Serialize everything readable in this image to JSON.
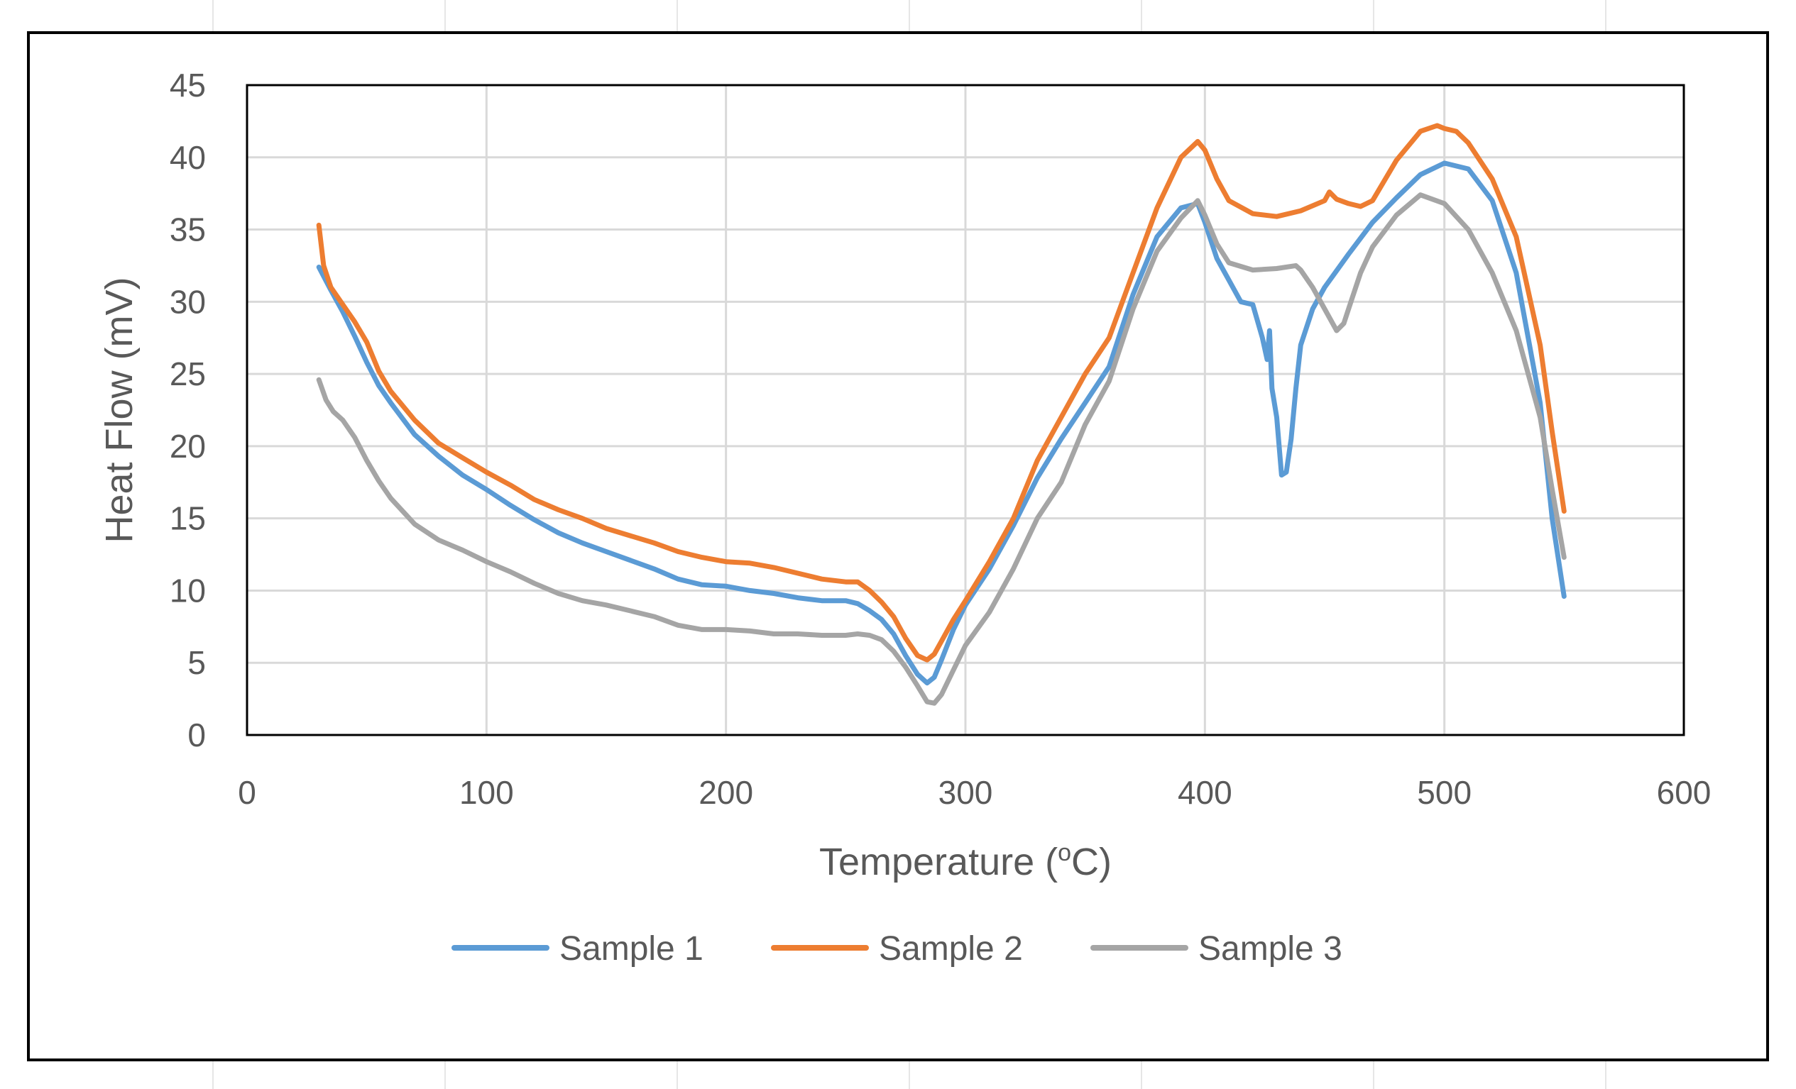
{
  "chart_data": {
    "type": "line",
    "title": "",
    "xlabel": "Temperature (",
    "xlabel_sup": "o",
    "xlabel_tail": "C)",
    "ylabel": "Heat Flow (mV)",
    "xlim": [
      0,
      600
    ],
    "ylim": [
      0,
      45
    ],
    "xticks": [
      0,
      100,
      200,
      300,
      400,
      500,
      600
    ],
    "yticks": [
      0,
      5,
      10,
      15,
      20,
      25,
      30,
      35,
      40,
      45
    ],
    "grid": true,
    "legend_position": "bottom",
    "series": [
      {
        "name": "Sample 1",
        "color": "#5B9BD5",
        "x": [
          30,
          35,
          40,
          45,
          50,
          55,
          60,
          70,
          80,
          90,
          100,
          110,
          120,
          130,
          140,
          150,
          160,
          170,
          180,
          190,
          200,
          210,
          220,
          230,
          240,
          250,
          255,
          260,
          265,
          270,
          275,
          280,
          284,
          287,
          290,
          295,
          300,
          310,
          320,
          330,
          340,
          350,
          360,
          370,
          380,
          390,
          397,
          400,
          405,
          410,
          415,
          420,
          424,
          426,
          427,
          428,
          430,
          432,
          434,
          436,
          438,
          440,
          445,
          450,
          460,
          470,
          480,
          490,
          500,
          510,
          520,
          530,
          540,
          545,
          550
        ],
        "y": [
          32.4,
          30.8,
          29.3,
          27.6,
          25.8,
          24.2,
          23.0,
          20.8,
          19.3,
          18.0,
          17.0,
          15.9,
          14.9,
          14.0,
          13.3,
          12.7,
          12.1,
          11.5,
          10.8,
          10.4,
          10.3,
          10.0,
          9.8,
          9.5,
          9.3,
          9.3,
          9.1,
          8.6,
          8.0,
          7.0,
          5.5,
          4.2,
          3.6,
          4.0,
          5.2,
          7.3,
          9.0,
          11.5,
          14.5,
          17.8,
          20.5,
          23.0,
          25.5,
          30.5,
          34.5,
          36.5,
          36.8,
          35.5,
          33.0,
          31.5,
          30.0,
          29.8,
          27.5,
          26.0,
          28.0,
          24.0,
          22.0,
          18.0,
          18.2,
          20.5,
          24.0,
          27.0,
          29.5,
          31.0,
          33.3,
          35.5,
          37.2,
          38.8,
          39.6,
          39.2,
          37.0,
          32.0,
          23.0,
          15.0,
          9.6
        ]
      },
      {
        "name": "Sample 2",
        "color": "#ED7D31",
        "x": [
          30,
          32,
          35,
          40,
          45,
          50,
          55,
          60,
          70,
          80,
          90,
          100,
          110,
          120,
          130,
          140,
          150,
          160,
          170,
          180,
          190,
          200,
          210,
          220,
          230,
          240,
          250,
          255,
          260,
          265,
          270,
          275,
          280,
          284,
          287,
          290,
          295,
          300,
          310,
          320,
          330,
          340,
          350,
          360,
          370,
          380,
          390,
          397,
          400,
          405,
          410,
          420,
          430,
          440,
          450,
          452,
          455,
          460,
          465,
          470,
          480,
          490,
          497,
          500,
          505,
          510,
          520,
          530,
          540,
          545,
          550
        ],
        "y": [
          35.3,
          32.5,
          31.0,
          29.8,
          28.6,
          27.2,
          25.2,
          23.8,
          21.8,
          20.2,
          19.2,
          18.2,
          17.3,
          16.3,
          15.6,
          15.0,
          14.3,
          13.8,
          13.3,
          12.7,
          12.3,
          12.0,
          11.9,
          11.6,
          11.2,
          10.8,
          10.6,
          10.6,
          10.0,
          9.2,
          8.2,
          6.7,
          5.5,
          5.2,
          5.6,
          6.5,
          8.0,
          9.3,
          12.0,
          15.0,
          19.0,
          22.0,
          25.0,
          27.5,
          32.0,
          36.5,
          40.0,
          41.1,
          40.5,
          38.5,
          37.0,
          36.1,
          35.9,
          36.3,
          37.0,
          37.6,
          37.1,
          36.8,
          36.6,
          37.0,
          39.8,
          41.8,
          42.2,
          42.0,
          41.8,
          41.0,
          38.5,
          34.5,
          27.0,
          21.0,
          15.5
        ]
      },
      {
        "name": "Sample 3",
        "color": "#A5A5A5",
        "x": [
          30,
          33,
          36,
          40,
          45,
          50,
          55,
          60,
          70,
          80,
          90,
          100,
          110,
          120,
          130,
          140,
          150,
          160,
          170,
          180,
          190,
          200,
          210,
          220,
          230,
          240,
          250,
          255,
          260,
          265,
          270,
          275,
          280,
          284,
          287,
          290,
          295,
          300,
          310,
          320,
          330,
          340,
          350,
          360,
          370,
          380,
          390,
          397,
          400,
          405,
          410,
          420,
          430,
          438,
          440,
          445,
          450,
          455,
          458,
          460,
          465,
          470,
          480,
          490,
          500,
          510,
          520,
          530,
          540,
          545,
          550
        ],
        "y": [
          24.6,
          23.2,
          22.4,
          21.8,
          20.6,
          19.0,
          17.6,
          16.4,
          14.6,
          13.5,
          12.8,
          12.0,
          11.3,
          10.5,
          9.8,
          9.3,
          9.0,
          8.6,
          8.2,
          7.6,
          7.3,
          7.3,
          7.2,
          7.0,
          7.0,
          6.9,
          6.9,
          7.0,
          6.9,
          6.6,
          5.8,
          4.7,
          3.4,
          2.3,
          2.2,
          2.8,
          4.5,
          6.2,
          8.5,
          11.5,
          15.0,
          17.5,
          21.5,
          24.5,
          29.5,
          33.5,
          35.8,
          37.0,
          36.0,
          34.0,
          32.7,
          32.2,
          32.3,
          32.5,
          32.2,
          31.0,
          29.5,
          28.0,
          28.5,
          29.5,
          32.0,
          33.8,
          36.0,
          37.4,
          36.8,
          35.0,
          32.0,
          28.0,
          22.0,
          17.0,
          12.3
        ]
      }
    ]
  }
}
